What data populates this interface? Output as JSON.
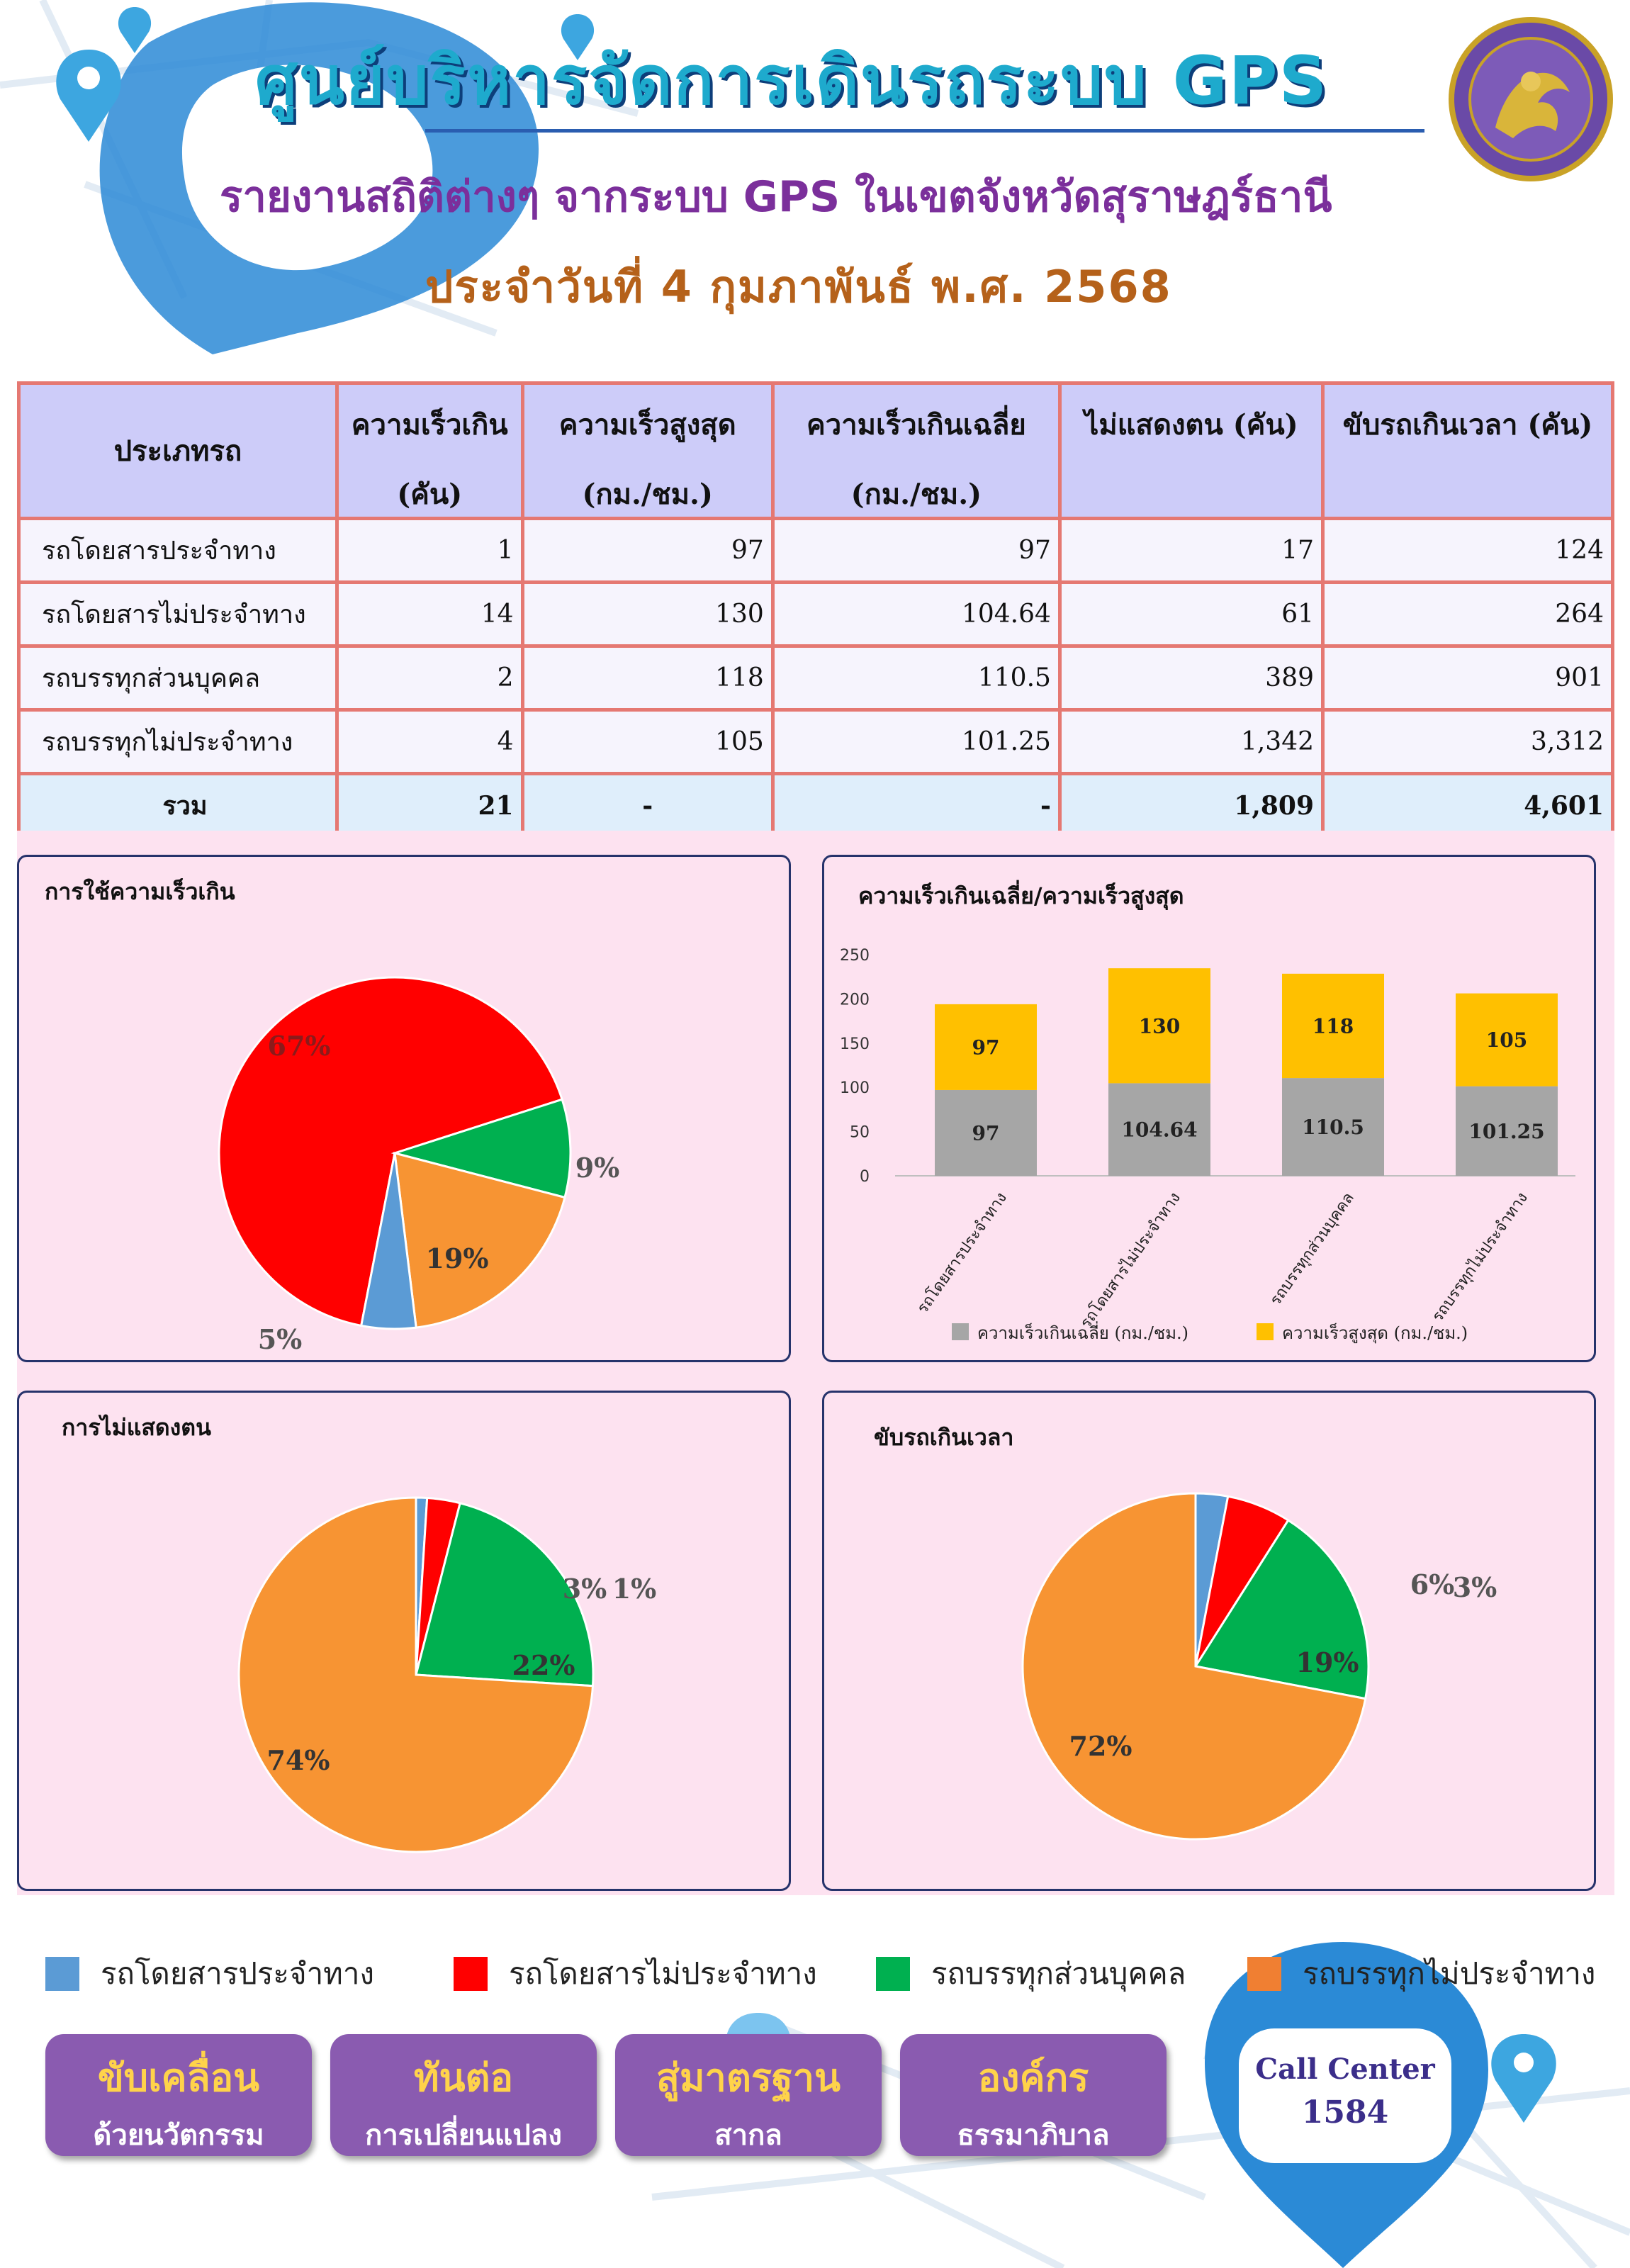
{
  "header": {
    "title": "ศูนย์บริหารจัดการเดินรถระบบ GPS",
    "subtitle": "รายงานสถิติต่างๆ จากระบบ GPS ในเขตจังหวัดสุราษฎร์ธานี",
    "date": "ประจำวันที่ 4 กุมภาพันธ์ พ.ศ. 2568"
  },
  "table": {
    "headers": {
      "type": "ประเภทรถ",
      "speeding_1": "ความเร็วเกิน",
      "speeding_2": "(คัน)",
      "max_1": "ความเร็วสูงสุด",
      "max_2": "(กม./ชม.)",
      "avg_1": "ความเร็วเกินเฉลี่ย",
      "avg_2": "(กม./ชม.)",
      "noid": "ไม่แสดงตน (คัน)",
      "overtime": "ขับรถเกินเวลา (คัน)"
    },
    "rows": [
      {
        "name": "รถโดยสารประจำทาง",
        "speeding": "1",
        "max": "97",
        "avg": "97",
        "noid": "17",
        "overtime": "124"
      },
      {
        "name": "รถโดยสารไม่ประจำทาง",
        "speeding": "14",
        "max": "130",
        "avg": "104.64",
        "noid": "61",
        "overtime": "264"
      },
      {
        "name": "รถบรรทุกส่วนบุคคล",
        "speeding": "2",
        "max": "118",
        "avg": "110.5",
        "noid": "389",
        "overtime": "901"
      },
      {
        "name": "รถบรรทุกไม่ประจำทาง",
        "speeding": "4",
        "max": "105",
        "avg": "101.25",
        "noid": "1,342",
        "overtime": "3,312"
      }
    ],
    "total": {
      "name": "รวม",
      "speeding": "21",
      "max": "-",
      "avg": "-",
      "noid": "1,809",
      "overtime": "4,601"
    }
  },
  "colors": {
    "bus_fixed": "#5b9bd5",
    "bus_nonfixed": "#ff0000",
    "truck_private": "#00b050",
    "truck_nonfixed": "#f79433",
    "bar_avg": "#a6a6a6",
    "bar_max": "#ffc000"
  },
  "chart_data": [
    {
      "type": "pie",
      "title": "การใช้ความเร็วเกิน",
      "categories": [
        "รถโดยสารประจำทาง",
        "รถโดยสารไม่ประจำทาง",
        "รถบรรทุกส่วนบุคคล",
        "รถบรรทุกไม่ประจำทาง"
      ],
      "values": [
        5,
        67,
        9,
        19
      ],
      "labels": [
        "5%",
        "67%",
        "9%",
        "19%"
      ]
    },
    {
      "type": "bar",
      "stacked": true,
      "title": "ความเร็วเกินเฉลี่ย/ความเร็วสูงสุด",
      "categories": [
        "รถโดยสารประจำทาง",
        "รถโดยสารไม่ประจำทาง",
        "รถบรรทุกส่วนบุคคล",
        "รถบรรทุกไม่ประจำทาง"
      ],
      "series": [
        {
          "name": "ความเร็วเกินเฉลี่ย (กม./ชม.)",
          "values": [
            97,
            104.64,
            110.5,
            101.25
          ],
          "labels": [
            "97",
            "104.64",
            "110.5",
            "101.25"
          ]
        },
        {
          "name": "ความเร็วสูงสุด (กม./ชม.)",
          "values": [
            97,
            130,
            118,
            105
          ],
          "labels": [
            "97",
            "130",
            "118",
            "105"
          ]
        }
      ],
      "ylim": [
        0,
        250
      ],
      "yticks": [
        "0",
        "50",
        "100",
        "150",
        "200",
        "250"
      ],
      "legend": "bottom"
    },
    {
      "type": "pie",
      "title": "การไม่แสดงตน",
      "categories": [
        "รถโดยสารประจำทาง",
        "รถโดยสารไม่ประจำทาง",
        "รถบรรทุกส่วนบุคคล",
        "รถบรรทุกไม่ประจำทาง"
      ],
      "values": [
        1,
        3,
        22,
        74
      ],
      "labels": [
        "1%",
        "3%",
        "22%",
        "74%"
      ]
    },
    {
      "type": "pie",
      "title": "ขับรถเกินเวลา",
      "categories": [
        "รถโดยสารประจำทาง",
        "รถโดยสารไม่ประจำทาง",
        "รถบรรทุกส่วนบุคคล",
        "รถบรรทุกไม่ประจำทาง"
      ],
      "values": [
        3,
        6,
        19,
        72
      ],
      "labels": [
        "3%",
        "6%",
        "19%",
        "72%"
      ]
    }
  ],
  "legend": [
    "รถโดยสารประจำทาง",
    "รถโดยสารไม่ประจำทาง",
    "รถบรรทุกส่วนบุคคล",
    "รถบรรทุกไม่ประจำทาง"
  ],
  "buttons": [
    {
      "line1": "ขับเคลื่อน",
      "line2": "ด้วยนวัตกรรม"
    },
    {
      "line1": "ทันต่อ",
      "line2": "การเปลี่ยนแปลง"
    },
    {
      "line1": "สู่มาตรฐาน",
      "line2": "สากล"
    },
    {
      "line1": "องค์กร",
      "line2": "ธรรมาภิบาล"
    }
  ],
  "call_center": {
    "label": "Call Center",
    "number": "1584"
  }
}
